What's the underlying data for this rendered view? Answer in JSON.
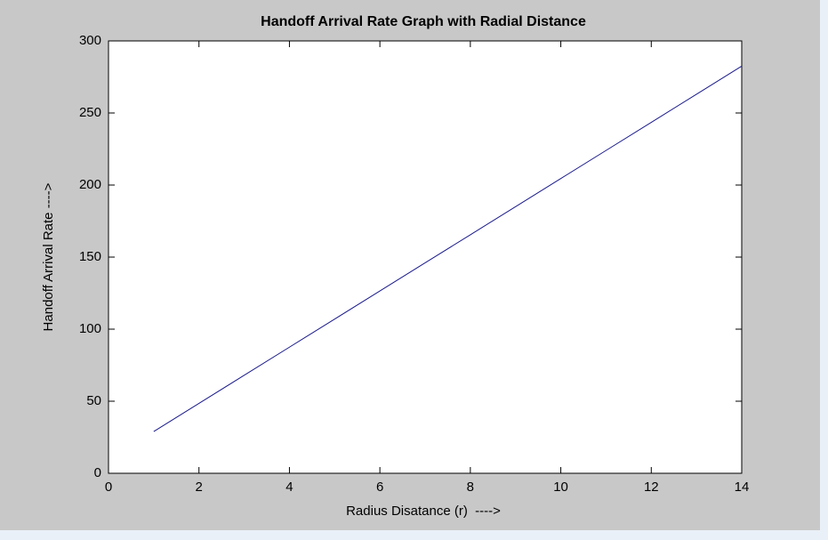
{
  "chart_data": {
    "type": "line",
    "title": "Handoff Arrival Rate Graph with Radial Distance",
    "x_label": "Radius Disatance (r)  ---->",
    "y_label": "Handoff Arrival Rate ---->",
    "x": [
      1,
      2,
      3,
      4,
      5,
      6,
      7,
      8,
      9,
      10,
      11,
      12,
      13,
      14
    ],
    "series": [
      {
        "color": "#1a1a8c",
        "values": [
          29,
          48.5,
          68,
          87.5,
          107,
          126.5,
          146,
          165.5,
          185,
          204.5,
          224,
          243.5,
          263,
          282.5
        ]
      }
    ],
    "xlim": [
      0,
      14
    ],
    "xticks": [
      0,
      2,
      4,
      6,
      8,
      10,
      12,
      14
    ],
    "ylim": [
      0,
      300
    ],
    "yticks": [
      0,
      50,
      100,
      150,
      200,
      250,
      300
    ],
    "grid": false
  }
}
